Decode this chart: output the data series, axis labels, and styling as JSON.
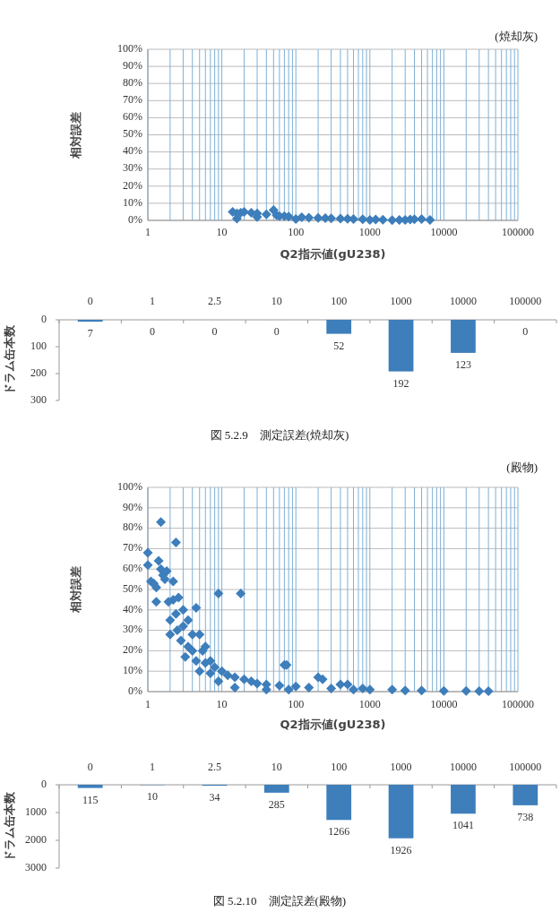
{
  "chart_data": [
    {
      "type": "scatter",
      "xlabel": "Q2指示値(gU238)",
      "ylabel": "相対誤差",
      "annotations": [
        "(焼却灰)"
      ],
      "log": "x",
      "grid": true,
      "marker": "diamond",
      "color": "#3d7ebb",
      "xlim": [
        1,
        100000
      ],
      "xticks": [
        1,
        10,
        100,
        1000,
        10000,
        100000
      ],
      "ylim": [
        0,
        100
      ],
      "yticks": [
        {
          "value": 0,
          "label": "0%"
        },
        {
          "value": 10,
          "label": "10%"
        },
        {
          "value": 20,
          "label": "20%"
        },
        {
          "value": 30,
          "label": "30%"
        },
        {
          "value": 40,
          "label": "40%"
        },
        {
          "value": 50,
          "label": "50%"
        },
        {
          "value": 60,
          "label": "60%"
        },
        {
          "value": 70,
          "label": "70%"
        },
        {
          "value": 80,
          "label": "80%"
        },
        {
          "value": 90,
          "label": "90%"
        },
        {
          "value": 100,
          "label": "100%"
        }
      ],
      "x": [
        14,
        16,
        16,
        18,
        20,
        25,
        30,
        30,
        40,
        50,
        55,
        60,
        70,
        80,
        100,
        120,
        150,
        200,
        250,
        300,
        400,
        500,
        600,
        800,
        1000,
        1200,
        1500,
        2000,
        2500,
        3000,
        3500,
        4000,
        5000,
        6500
      ],
      "values": [
        5,
        1,
        4,
        4.5,
        5,
        4.5,
        4,
        2,
        3.5,
        6,
        3,
        2.5,
        2.5,
        2.2,
        0.8,
        1.8,
        1.6,
        1.5,
        1.3,
        1.2,
        1,
        0.9,
        0.8,
        0.7,
        0.2,
        0.5,
        0.4,
        0.1,
        0.3,
        0.3,
        0.5,
        0.7,
        0.8,
        0.3
      ]
    },
    {
      "type": "bar",
      "ylabel": "ドラム缶本数",
      "annotations": [
        "図 5.2.9　測定誤差(焼却灰)"
      ],
      "data_labels": true,
      "color": "#3d7ebb",
      "categories": [
        "0",
        "1",
        "2.5",
        "10",
        "100",
        "1000",
        "10000",
        "100000"
      ],
      "values": [
        7,
        0,
        0,
        0,
        52,
        192,
        123,
        0
      ],
      "ylim": [
        300,
        0
      ],
      "yticks": [
        0,
        100,
        200,
        300
      ]
    },
    {
      "type": "scatter",
      "xlabel": "Q2指示値(gU238)",
      "ylabel": "相対誤差",
      "annotations": [
        "(殿物)"
      ],
      "log": "x",
      "grid": true,
      "marker": "diamond",
      "color": "#3d7ebb",
      "xlim": [
        1,
        100000
      ],
      "xticks": [
        1,
        10,
        100,
        1000,
        10000,
        100000
      ],
      "ylim": [
        0,
        100
      ],
      "yticks": [
        {
          "value": 0,
          "label": "0%"
        },
        {
          "value": 10,
          "label": "10%"
        },
        {
          "value": 20,
          "label": "20%"
        },
        {
          "value": 30,
          "label": "30%"
        },
        {
          "value": 40,
          "label": "40%"
        },
        {
          "value": 50,
          "label": "50%"
        },
        {
          "value": 60,
          "label": "60%"
        },
        {
          "value": 70,
          "label": "70%"
        },
        {
          "value": 80,
          "label": "80%"
        },
        {
          "value": 90,
          "label": "90%"
        },
        {
          "value": 100,
          "label": "100%"
        }
      ],
      "x": [
        1,
        1,
        1.1,
        1.2,
        1.3,
        1.3,
        1.4,
        1.5,
        1.5,
        1.6,
        1.7,
        1.8,
        1.9,
        2,
        2,
        2.2,
        2.2,
        2.4,
        2.4,
        2.5,
        2.6,
        2.8,
        3,
        3,
        3.2,
        3.5,
        3.5,
        4,
        4,
        4.5,
        4.5,
        5,
        5,
        5.5,
        6,
        6,
        7,
        7,
        8,
        9,
        9,
        10,
        12,
        15,
        15,
        18,
        20,
        25,
        30,
        40,
        40,
        60,
        70,
        75,
        80,
        100,
        150,
        200,
        230,
        300,
        400,
        500,
        600,
        800,
        1000,
        2000,
        3000,
        5000,
        10000,
        20000,
        30000,
        40000
      ],
      "values": [
        68,
        62,
        54,
        53,
        51,
        44,
        64,
        83,
        60,
        57,
        55,
        59,
        44,
        28,
        35,
        54,
        45,
        73,
        38,
        30,
        46,
        25,
        40,
        32,
        17,
        35,
        22,
        28,
        20,
        41,
        15,
        28,
        10,
        20,
        14,
        22,
        9,
        15,
        12,
        48,
        5,
        10,
        8,
        2,
        7,
        48,
        6,
        5,
        4,
        1,
        3.5,
        3,
        13,
        13,
        1,
        2.5,
        2,
        7,
        6,
        1.5,
        3.5,
        3.5,
        1,
        1.5,
        1,
        1,
        0.5,
        0.5,
        0.3,
        0.3,
        0.2,
        0.2
      ]
    },
    {
      "type": "bar",
      "ylabel": "ドラム缶本数",
      "annotations": [
        "図 5.2.10　測定誤差(殿物)"
      ],
      "data_labels": true,
      "color": "#3d7ebb",
      "categories": [
        "0",
        "1",
        "2.5",
        "10",
        "100",
        "1000",
        "10000",
        "100000"
      ],
      "values": [
        115,
        10,
        34,
        285,
        1266,
        1926,
        1041,
        738
      ],
      "ylim": [
        3000,
        0
      ],
      "yticks": [
        0,
        1000,
        2000,
        3000
      ]
    }
  ]
}
